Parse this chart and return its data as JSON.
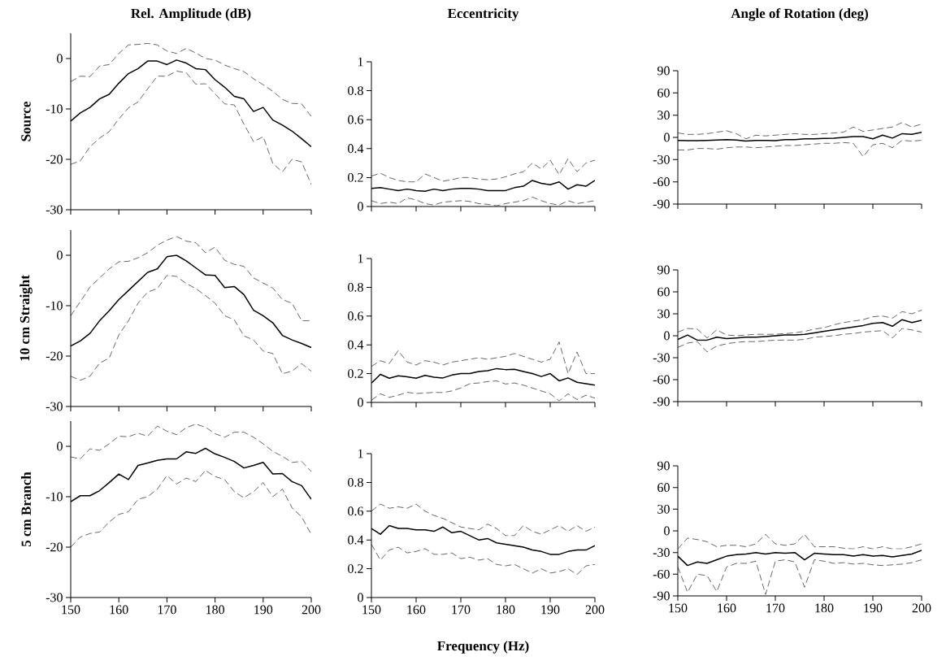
{
  "chart_data": [
    {
      "type": "line",
      "title": "Rel. Amplitude (dB)",
      "ylabel": "Source",
      "tick_labels": "y",
      "xlim": [
        150,
        200
      ],
      "xticks": [
        150,
        160,
        170,
        180,
        190,
        200
      ],
      "ylim": [
        -30,
        5
      ],
      "yticks": [
        -30,
        -20,
        -10,
        0
      ],
      "x": [
        150,
        152,
        154,
        156,
        158,
        160,
        162,
        164,
        166,
        168,
        170,
        172,
        174,
        176,
        178,
        180,
        182,
        184,
        186,
        188,
        190,
        192,
        194,
        196,
        198,
        200
      ],
      "series": [
        {
          "color": "#000000",
          "line_style": "solid",
          "values": [
            -12.4,
            -10.8,
            -9.7,
            -8,
            -7.1,
            -4.9,
            -3,
            -2,
            -0.5,
            -0.5,
            -1.2,
            -0.3,
            -0.9,
            -2,
            -2.2,
            -4.2,
            -5.7,
            -7.5,
            -8,
            -10.5,
            -9.7,
            -12.2,
            -13.2,
            -14.4,
            -15.9,
            -17.5
          ]
        },
        {
          "color": "#000000",
          "line_style": "dashed",
          "values": [
            -4.6,
            -3.5,
            -3.6,
            -1.5,
            -1.2,
            1,
            2.7,
            2.8,
            3,
            2.7,
            1.5,
            1,
            2,
            1.1,
            0,
            -0.3,
            -1.3,
            -2,
            -2.6,
            -4,
            -5.2,
            -6.5,
            -8.1,
            -8.9,
            -9,
            -11.5
          ]
        },
        {
          "color": "#000000",
          "line_style": "dashed",
          "values": [
            -21,
            -20.3,
            -17.5,
            -15.8,
            -14.5,
            -12,
            -9.8,
            -8.6,
            -6,
            -3.5,
            -3.5,
            -2.5,
            -2.8,
            -5.1,
            -5,
            -7,
            -9,
            -9.2,
            -13,
            -16.5,
            -15.5,
            -20.8,
            -22.5,
            -20,
            -20.5,
            -25
          ]
        }
      ]
    },
    {
      "type": "line",
      "title": "Eccentricity",
      "tick_labels": "y",
      "xlim": [
        150,
        200
      ],
      "xticks": [
        150,
        160,
        170,
        180,
        190,
        200
      ],
      "ylim": [
        0,
        1
      ],
      "yticks": [
        0,
        0.2,
        0.4,
        0.6,
        0.8,
        1
      ],
      "x": [
        150,
        152,
        154,
        156,
        158,
        160,
        162,
        164,
        166,
        168,
        170,
        172,
        174,
        176,
        178,
        180,
        182,
        184,
        186,
        188,
        190,
        192,
        194,
        196,
        198,
        200
      ],
      "series": [
        {
          "color": "#000000",
          "line_style": "solid",
          "values": [
            0.125,
            0.13,
            0.12,
            0.11,
            0.12,
            0.11,
            0.105,
            0.12,
            0.11,
            0.12,
            0.125,
            0.125,
            0.12,
            0.11,
            0.11,
            0.11,
            0.13,
            0.14,
            0.18,
            0.16,
            0.15,
            0.17,
            0.12,
            0.15,
            0.14,
            0.18
          ]
        },
        {
          "color": "#000000",
          "line_style": "dashed",
          "values": [
            0.21,
            0.23,
            0.2,
            0.18,
            0.17,
            0.17,
            0.225,
            0.2,
            0.175,
            0.185,
            0.2,
            0.2,
            0.19,
            0.185,
            0.19,
            0.205,
            0.225,
            0.24,
            0.3,
            0.26,
            0.32,
            0.22,
            0.33,
            0.24,
            0.3,
            0.32
          ]
        },
        {
          "color": "#000000",
          "line_style": "dashed",
          "values": [
            0.04,
            0.02,
            0.03,
            0.02,
            0.06,
            0.045,
            0.02,
            0.01,
            0.03,
            0.035,
            0.04,
            0.035,
            0.02,
            0.015,
            0.005,
            0.02,
            0.03,
            0.04,
            0.065,
            0.04,
            0.02,
            0.01,
            0.04,
            0.02,
            0.03,
            0.04
          ]
        }
      ]
    },
    {
      "type": "line",
      "title": "Angle of Rotation (deg)",
      "tick_labels": "y",
      "xlim": [
        150,
        200
      ],
      "xticks": [
        150,
        160,
        170,
        180,
        190,
        200
      ],
      "ylim": [
        -90,
        90
      ],
      "yticks": [
        -90,
        -60,
        -30,
        0,
        30,
        60,
        90
      ],
      "x": [
        150,
        152,
        154,
        156,
        158,
        160,
        162,
        164,
        166,
        168,
        170,
        172,
        174,
        176,
        178,
        180,
        182,
        184,
        186,
        188,
        190,
        192,
        194,
        196,
        198,
        200
      ],
      "series": [
        {
          "color": "#000000",
          "line_style": "solid",
          "values": [
            -4,
            -4.5,
            -4.5,
            -4,
            -3.5,
            -3,
            -3.5,
            -5,
            -4,
            -4,
            -4.5,
            -3,
            -3,
            -2,
            -2,
            -1.5,
            -1,
            0,
            1,
            1,
            -2,
            3,
            -1,
            5,
            4,
            7
          ]
        },
        {
          "color": "#000000",
          "line_style": "dashed",
          "values": [
            6,
            4,
            4,
            5,
            7,
            9,
            5,
            -2,
            3,
            2,
            3,
            4,
            5,
            4,
            4,
            5,
            6,
            7,
            14,
            8,
            10,
            12,
            14,
            20,
            14,
            18
          ]
        },
        {
          "color": "#000000",
          "line_style": "dashed",
          "values": [
            -17,
            -17,
            -15,
            -15,
            -16,
            -14,
            -13,
            -13,
            -14,
            -13,
            -12,
            -11,
            -11,
            -10,
            -9,
            -8,
            -8,
            -7,
            -8,
            -26,
            -10,
            -8,
            -14,
            -4,
            -5,
            -4
          ]
        }
      ]
    },
    {
      "type": "line",
      "ylabel": "10 cm Straight",
      "tick_labels": "y",
      "xlim": [
        150,
        200
      ],
      "xticks": [
        150,
        160,
        170,
        180,
        190,
        200
      ],
      "ylim": [
        -30,
        5
      ],
      "yticks": [
        -30,
        -20,
        -10,
        0
      ],
      "x": [
        150,
        152,
        154,
        156,
        158,
        160,
        162,
        164,
        166,
        168,
        170,
        172,
        174,
        176,
        178,
        180,
        182,
        184,
        186,
        188,
        190,
        192,
        194,
        196,
        198,
        200
      ],
      "series": [
        {
          "color": "#000000",
          "line_style": "solid",
          "values": [
            -18,
            -17,
            -15.5,
            -13,
            -11,
            -8.8,
            -7,
            -5.2,
            -3.4,
            -2.7,
            -0.3,
            0,
            -1.1,
            -2.5,
            -3.9,
            -4,
            -6.4,
            -6.2,
            -7.8,
            -10.9,
            -12,
            -13.4,
            -15.9,
            -16.8,
            -17.5,
            -18.3
          ]
        },
        {
          "color": "#000000",
          "line_style": "dashed",
          "values": [
            -12,
            -9.2,
            -6.3,
            -4.5,
            -2.7,
            -1.3,
            -1.2,
            -0.5,
            0.5,
            2,
            3,
            3.7,
            2.8,
            2.5,
            0.5,
            1.6,
            -1,
            -1.8,
            -2.2,
            -4.5,
            -5.5,
            -6.5,
            -8.8,
            -9.5,
            -13,
            -13
          ]
        },
        {
          "color": "#000000",
          "line_style": "dashed",
          "values": [
            -24,
            -24.8,
            -24,
            -21.4,
            -20.4,
            -15.8,
            -13,
            -9.5,
            -7.3,
            -6.6,
            -4,
            -4.2,
            -5.6,
            -6.6,
            -8,
            -9.5,
            -12,
            -12.8,
            -16,
            -16.8,
            -19,
            -19.5,
            -23.5,
            -23,
            -21.5,
            -23
          ]
        }
      ]
    },
    {
      "type": "line",
      "tick_labels": "y",
      "xlim": [
        150,
        200
      ],
      "xticks": [
        150,
        160,
        170,
        180,
        190,
        200
      ],
      "ylim": [
        0,
        1
      ],
      "yticks": [
        0,
        0.2,
        0.4,
        0.6,
        0.8,
        1
      ],
      "x": [
        150,
        152,
        154,
        156,
        158,
        160,
        162,
        164,
        166,
        168,
        170,
        172,
        174,
        176,
        178,
        180,
        182,
        184,
        186,
        188,
        190,
        192,
        194,
        196,
        198,
        200
      ],
      "series": [
        {
          "color": "#000000",
          "line_style": "solid",
          "values": [
            0.134,
            0.195,
            0.168,
            0.185,
            0.178,
            0.168,
            0.188,
            0.175,
            0.17,
            0.19,
            0.2,
            0.2,
            0.215,
            0.22,
            0.235,
            0.228,
            0.23,
            0.215,
            0.2,
            0.18,
            0.2,
            0.15,
            0.17,
            0.14,
            0.13,
            0.12
          ]
        },
        {
          "color": "#000000",
          "line_style": "dashed",
          "values": [
            0.25,
            0.29,
            0.27,
            0.36,
            0.28,
            0.26,
            0.29,
            0.28,
            0.26,
            0.28,
            0.29,
            0.3,
            0.31,
            0.3,
            0.31,
            0.32,
            0.34,
            0.32,
            0.3,
            0.28,
            0.3,
            0.42,
            0.2,
            0.35,
            0.2,
            0.2
          ]
        },
        {
          "color": "#000000",
          "line_style": "dashed",
          "values": [
            0.015,
            0.06,
            0.035,
            0.05,
            0.07,
            0.062,
            0.065,
            0.07,
            0.068,
            0.08,
            0.1,
            0.13,
            0.135,
            0.145,
            0.15,
            0.128,
            0.135,
            0.12,
            0.1,
            0.08,
            0.06,
            0.01,
            0.06,
            0.02,
            0.05,
            0.03
          ]
        }
      ]
    },
    {
      "type": "line",
      "tick_labels": "y",
      "xlim": [
        150,
        200
      ],
      "xticks": [
        150,
        160,
        170,
        180,
        190,
        200
      ],
      "ylim": [
        -90,
        90
      ],
      "yticks": [
        -90,
        -60,
        -30,
        0,
        30,
        60,
        90
      ],
      "x": [
        150,
        152,
        154,
        156,
        158,
        160,
        162,
        164,
        166,
        168,
        170,
        172,
        174,
        176,
        178,
        180,
        182,
        184,
        186,
        188,
        190,
        192,
        194,
        196,
        198,
        200
      ],
      "series": [
        {
          "color": "#000000",
          "line_style": "solid",
          "values": [
            -5,
            1,
            -6,
            -6,
            -2,
            -4,
            -3,
            -2,
            -2,
            -1,
            0,
            1,
            1,
            2,
            4,
            6,
            8,
            10,
            12,
            14,
            17,
            18,
            13,
            22,
            18,
            21
          ]
        },
        {
          "color": "#000000",
          "line_style": "dashed",
          "values": [
            5,
            10,
            9,
            -3,
            8,
            1,
            0,
            1,
            2,
            2,
            2,
            3,
            4,
            6,
            9,
            11,
            15,
            18,
            20,
            22,
            26,
            27,
            24,
            33,
            30,
            35
          ]
        },
        {
          "color": "#000000",
          "line_style": "dashed",
          "values": [
            -16,
            -10,
            -8,
            -22,
            -14,
            -11,
            -9,
            -8,
            -8,
            -7,
            -6,
            -6,
            -6,
            -5,
            -2,
            -1,
            0,
            2,
            3,
            5,
            6,
            7,
            -3,
            10,
            8,
            5
          ]
        }
      ]
    },
    {
      "type": "line",
      "ylabel": "5 cm Branch",
      "xlim": [
        150,
        200
      ],
      "xticks": [
        150,
        160,
        170,
        180,
        190,
        200
      ],
      "ylim": [
        -30,
        5
      ],
      "yticks": [
        -30,
        -20,
        -10,
        0
      ],
      "x": [
        150,
        152,
        154,
        156,
        158,
        160,
        162,
        164,
        166,
        168,
        170,
        172,
        174,
        176,
        178,
        180,
        182,
        184,
        186,
        188,
        190,
        192,
        194,
        196,
        198,
        200
      ],
      "series": [
        {
          "color": "#000000",
          "line_style": "solid",
          "values": [
            -11,
            -9.8,
            -9.8,
            -8.8,
            -7.2,
            -5.5,
            -6.6,
            -3.8,
            -3.3,
            -2.8,
            -2.5,
            -2.5,
            -1.1,
            -1.4,
            -0.4,
            -1.5,
            -2.2,
            -3,
            -4.3,
            -3.8,
            -3.2,
            -5.5,
            -5.4,
            -7,
            -7.8,
            -10.5
          ]
        },
        {
          "color": "#000000",
          "line_style": "dashed",
          "values": [
            -2.1,
            -2.5,
            -0.5,
            -0.8,
            0.5,
            2,
            1.9,
            2.6,
            2,
            4,
            3,
            2.3,
            3.7,
            4.4,
            3.8,
            2.5,
            1.8,
            2.8,
            2.8,
            1.8,
            0.5,
            -1,
            -2,
            -3.2,
            -3,
            -5
          ]
        },
        {
          "color": "#000000",
          "line_style": "dashed",
          "values": [
            -20,
            -18,
            -17.3,
            -17,
            -15,
            -13.5,
            -13,
            -10.5,
            -10,
            -8.5,
            -5.8,
            -7.5,
            -6.3,
            -7,
            -4.8,
            -6,
            -6.6,
            -9,
            -10.2,
            -9,
            -7.2,
            -10,
            -8.5,
            -12.2,
            -14,
            -17.5
          ]
        }
      ]
    },
    {
      "type": "line",
      "xlabel": "Frequency (Hz)",
      "xlim": [
        150,
        200
      ],
      "xticks": [
        150,
        160,
        170,
        180,
        190,
        200
      ],
      "ylim": [
        0,
        1
      ],
      "yticks": [
        0,
        0.2,
        0.4,
        0.6,
        0.8,
        1
      ],
      "x": [
        150,
        152,
        154,
        156,
        158,
        160,
        162,
        164,
        166,
        168,
        170,
        172,
        174,
        176,
        178,
        180,
        182,
        184,
        186,
        188,
        190,
        192,
        194,
        196,
        198,
        200
      ],
      "series": [
        {
          "color": "#000000",
          "line_style": "solid",
          "values": [
            0.48,
            0.44,
            0.5,
            0.48,
            0.48,
            0.47,
            0.47,
            0.46,
            0.49,
            0.45,
            0.46,
            0.43,
            0.4,
            0.41,
            0.38,
            0.37,
            0.36,
            0.35,
            0.33,
            0.32,
            0.3,
            0.3,
            0.32,
            0.33,
            0.33,
            0.36
          ]
        },
        {
          "color": "#000000",
          "line_style": "dashed",
          "values": [
            0.6,
            0.65,
            0.62,
            0.63,
            0.62,
            0.65,
            0.6,
            0.57,
            0.55,
            0.52,
            0.49,
            0.48,
            0.47,
            0.51,
            0.48,
            0.43,
            0.43,
            0.5,
            0.46,
            0.44,
            0.47,
            0.5,
            0.46,
            0.5,
            0.46,
            0.49
          ]
        },
        {
          "color": "#000000",
          "line_style": "dashed",
          "values": [
            0.37,
            0.26,
            0.33,
            0.35,
            0.31,
            0.32,
            0.34,
            0.3,
            0.3,
            0.31,
            0.27,
            0.28,
            0.26,
            0.27,
            0.23,
            0.22,
            0.23,
            0.2,
            0.17,
            0.2,
            0.17,
            0.18,
            0.2,
            0.16,
            0.22,
            0.23
          ]
        }
      ]
    },
    {
      "type": "line",
      "xlim": [
        150,
        200
      ],
      "xticks": [
        150,
        160,
        170,
        180,
        190,
        200
      ],
      "ylim": [
        -90,
        90
      ],
      "yticks": [
        -90,
        -60,
        -30,
        0,
        30,
        60,
        90
      ],
      "x": [
        150,
        152,
        154,
        156,
        158,
        160,
        162,
        164,
        166,
        168,
        170,
        172,
        174,
        176,
        178,
        180,
        182,
        184,
        186,
        188,
        190,
        192,
        194,
        196,
        198,
        200
      ],
      "series": [
        {
          "color": "#000000",
          "line_style": "solid",
          "values": [
            -35,
            -48,
            -43,
            -45,
            -40,
            -35,
            -33,
            -32,
            -30,
            -32,
            -30,
            -31,
            -30,
            -40,
            -31,
            -32,
            -33,
            -33,
            -35,
            -33,
            -35,
            -34,
            -36,
            -34,
            -32,
            -27
          ]
        },
        {
          "color": "#000000",
          "line_style": "dashed",
          "values": [
            -25,
            -10,
            -12,
            -15,
            -22,
            -20,
            -20,
            -22,
            -18,
            -5,
            -18,
            -20,
            -18,
            -5,
            -22,
            -22,
            -22,
            -24,
            -25,
            -22,
            -25,
            -22,
            -25,
            -25,
            -22,
            -18
          ]
        },
        {
          "color": "#000000",
          "line_style": "dashed",
          "values": [
            -50,
            -85,
            -60,
            -62,
            -84,
            -50,
            -45,
            -45,
            -42,
            -88,
            -42,
            -40,
            -43,
            -78,
            -40,
            -42,
            -45,
            -44,
            -46,
            -45,
            -47,
            -48,
            -47,
            -46,
            -44,
            -40
          ]
        }
      ]
    }
  ]
}
